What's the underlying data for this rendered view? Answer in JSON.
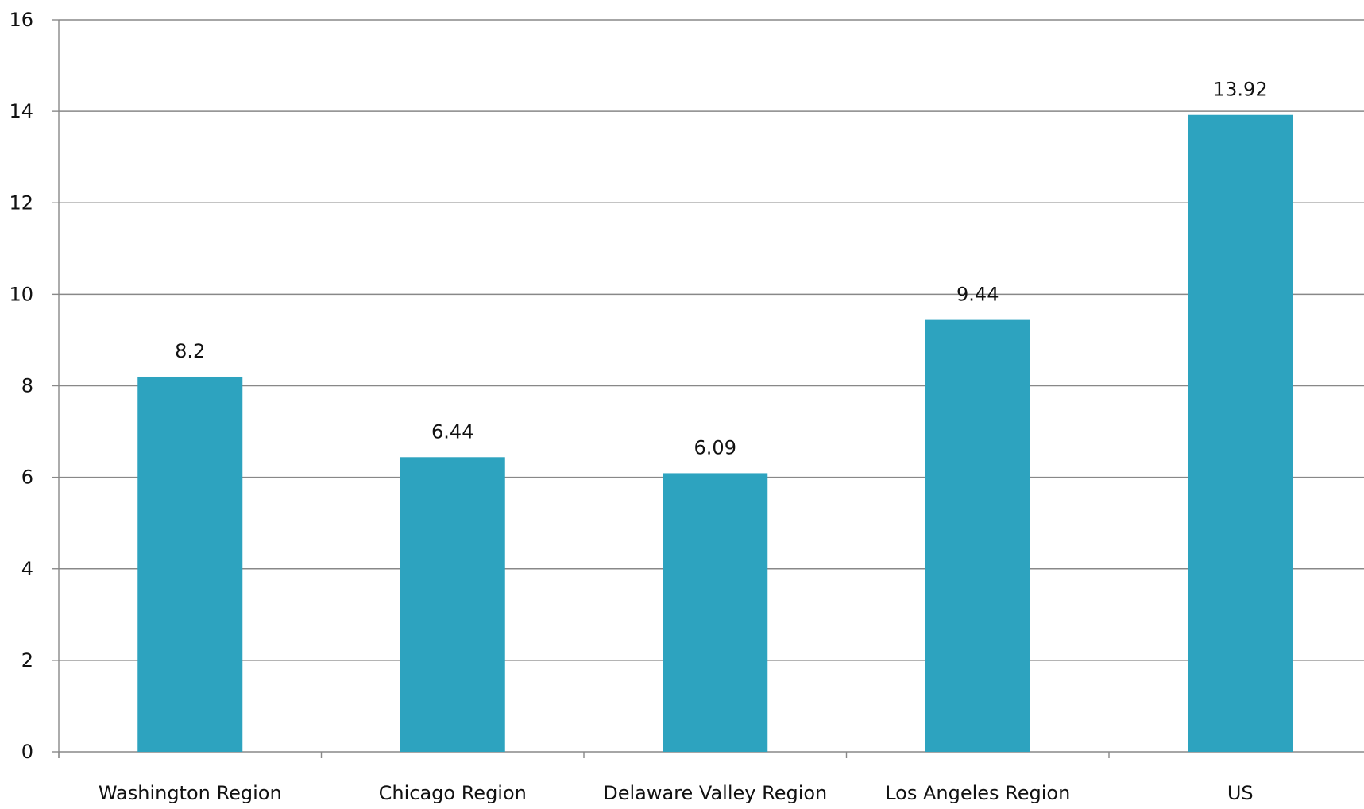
{
  "chart_data": {
    "type": "bar",
    "title": "",
    "xlabel": "",
    "ylabel": "",
    "categories": [
      "Washington Region",
      "Chicago Region",
      "Delaware Valley Region",
      "Los Angeles Region",
      "US"
    ],
    "values": [
      8.2,
      6.44,
      6.09,
      9.44,
      13.92
    ],
    "data_labels": [
      "8.2",
      "6.44",
      "6.09",
      "9.44",
      "13.92"
    ],
    "ylim": [
      0,
      16
    ],
    "yticks": [
      0,
      2,
      4,
      6,
      8,
      10,
      12,
      14,
      16
    ],
    "grid": true,
    "legend": "none",
    "bar_color": "#2da3bf",
    "grid_color": "#888888"
  }
}
